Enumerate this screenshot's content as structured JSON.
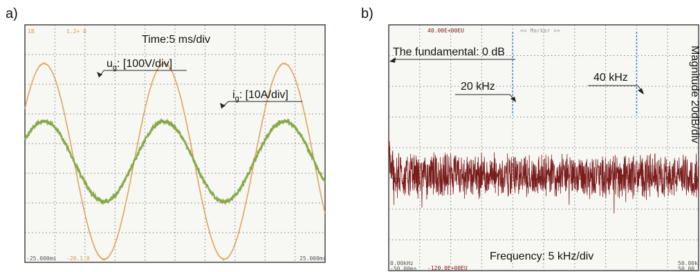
{
  "figure": {
    "panel_a_label": "a)",
    "panel_b_label": "b)"
  },
  "chart_data": [
    {
      "type": "line",
      "panel": "a)",
      "title": "Time:5 ms/div",
      "grid": true,
      "grid_divisions": {
        "x": 10,
        "y": 8
      },
      "scope_labels": {
        "top_left": "1B",
        "top_center": "1.2+ 0",
        "bottom_left": "-25.000ms",
        "bottom_center": "-20.1 0",
        "bottom_right": "25.000ms"
      },
      "x_range_ms": [
        -25,
        25
      ],
      "series": [
        {
          "name": "ug",
          "label_main": "u",
          "label_sub": "g",
          "label_rest": ": [100V/div]",
          "color": "#e3a35a",
          "amplitude_div": 3.3,
          "offset_div": -0.6,
          "frequency_hz": 50,
          "phase_deg": 0
        },
        {
          "name": "ig",
          "label_main": "i",
          "label_sub": "g",
          "label_rest": ": [10A/div]",
          "color": "#86a94a",
          "amplitude_div": 1.35,
          "offset_div": -0.6,
          "frequency_hz": 50,
          "phase_deg": 0
        }
      ]
    },
    {
      "type": "line",
      "panel": "b)",
      "grid": true,
      "grid_divisions": {
        "x": 10,
        "y": 8
      },
      "xlabel": "Frequency: 5 kHz/div",
      "right_label": "Magnitude 20dB/div",
      "x_range_khz": [
        0,
        50
      ],
      "y_range_db": [
        -120,
        40
      ],
      "scope_labels": {
        "top_left": "40.00E+00EU",
        "top_center": "<< Marker >>",
        "bottom_left_1": "0.00kHz",
        "bottom_left_2": "-50.00ms",
        "bottom_center": "-120.0E+00EU",
        "bottom_right_1": "50.00k",
        "bottom_right_2": "50.00"
      },
      "spectrum_color": "#7a1c1c",
      "marker_color": "#3b7de0",
      "noise_floor_db": -58,
      "annotations": [
        {
          "text": "The fundamental: 0 dB",
          "x_khz": 0,
          "y_db": 0
        },
        {
          "text": "20 kHz",
          "x_khz": 20,
          "y_db": -28
        },
        {
          "text": "40 kHz",
          "x_khz": 40,
          "y_db": -28
        }
      ],
      "markers_khz": [
        20,
        40
      ]
    }
  ]
}
